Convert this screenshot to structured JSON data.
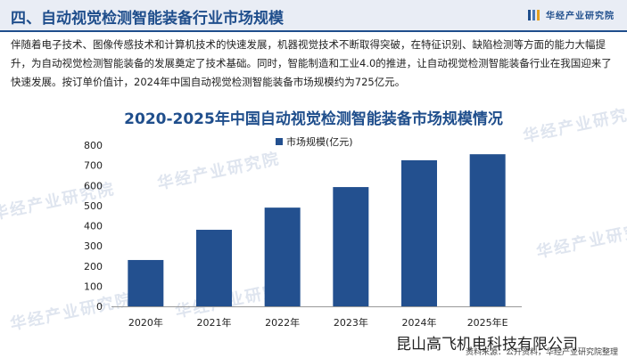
{
  "header": {
    "title": "四、自动视觉检测智能装备行业市场规模",
    "brand": "华经产业研究院"
  },
  "intro_text": "伴随着电子技术、图像传感技术和计算机技术的快速发展，机器视觉技术不断取得突破，在特征识别、缺陷检测等方面的能力大幅提升，为自动视觉检测智能装备的发展奠定了技术基础。同时，智能制造和工业4.0的推进，让自动视觉检测智能装备行业在我国迎来了快速发展。按订单价值计，2024年中国自动视觉检测智能装备市场规模约为725亿元。",
  "watermark": "华经产业研究院",
  "overlay_company": "昆山高飞机电科技有限公司",
  "source": "资料来源：公开资料，华经产业研究院整理",
  "colors": {
    "bar": "#23508f",
    "accent": "#1f4e8c"
  },
  "chart_data": {
    "type": "bar",
    "title": "2020-2025年中国自动视觉检测智能装备市场规模情况",
    "categories": [
      "2020年",
      "2021年",
      "2022年",
      "2023年",
      "2024年",
      "2025年E"
    ],
    "series": [
      {
        "name": "市场规模(亿元)",
        "values": [
          230,
          380,
          490,
          592,
          725,
          755
        ]
      }
    ],
    "ylim": [
      0,
      800
    ],
    "yticks": [
      0,
      100,
      200,
      300,
      400,
      500,
      600,
      700,
      800
    ],
    "grid": false,
    "legend": "top-center"
  }
}
